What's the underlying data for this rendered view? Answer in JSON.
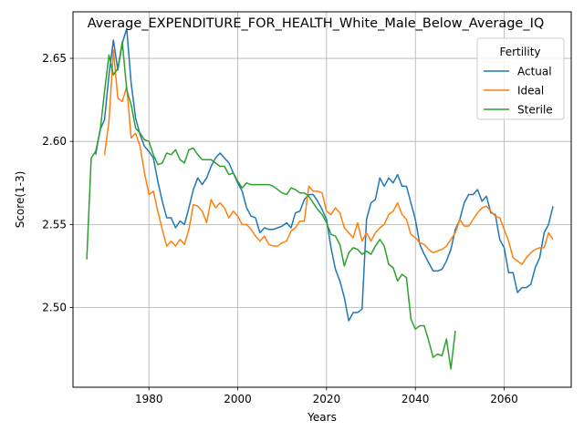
{
  "chart_data": {
    "type": "line",
    "title": "Average_EXPENDITURE_FOR_HEALTH_White_Male_Below_Average_IQ",
    "xlabel": "Years",
    "ylabel": "Score(1-3)",
    "xlim": [
      1962.9,
      2075.1
    ],
    "ylim": [
      2.452,
      2.678
    ],
    "xticks": [
      1980,
      2000,
      2020,
      2040,
      2060
    ],
    "yticks": [
      2.5,
      2.55,
      2.6,
      2.65
    ],
    "xtick_labels": [
      "1980",
      "2000",
      "2020",
      "2040",
      "2060"
    ],
    "ytick_labels": [
      "2.50",
      "2.55",
      "2.60",
      "2.65"
    ],
    "grid": true,
    "legend": {
      "title": "Fertility",
      "position": "top-right"
    },
    "series": [
      {
        "name": "Actual",
        "color": "#1f77b4",
        "points": [
          [
            1968,
            2.592
          ],
          [
            1969,
            2.607
          ],
          [
            1970,
            2.613
          ],
          [
            1971,
            2.64
          ],
          [
            1972,
            2.661
          ],
          [
            1973,
            2.643
          ],
          [
            1974,
            2.659
          ],
          [
            1975,
            2.668
          ],
          [
            1976,
            2.635
          ],
          [
            1977,
            2.614
          ],
          [
            1978,
            2.604
          ],
          [
            1979,
            2.597
          ],
          [
            1980,
            2.594
          ],
          [
            1981,
            2.59
          ],
          [
            1982,
            2.576
          ],
          [
            1983,
            2.564
          ],
          [
            1984,
            2.554
          ],
          [
            1985,
            2.554
          ],
          [
            1986,
            2.548
          ],
          [
            1987,
            2.552
          ],
          [
            1988,
            2.55
          ],
          [
            1989,
            2.56
          ],
          [
            1990,
            2.571
          ],
          [
            1991,
            2.578
          ],
          [
            1992,
            2.574
          ],
          [
            1993,
            2.578
          ],
          [
            1994,
            2.585
          ],
          [
            1995,
            2.59
          ],
          [
            1996,
            2.593
          ],
          [
            1997,
            2.59
          ],
          [
            1998,
            2.587
          ],
          [
            1999,
            2.581
          ],
          [
            2000,
            2.575
          ],
          [
            2001,
            2.57
          ],
          [
            2002,
            2.56
          ],
          [
            2003,
            2.555
          ],
          [
            2004,
            2.554
          ],
          [
            2005,
            2.545
          ],
          [
            2006,
            2.548
          ],
          [
            2007,
            2.547
          ],
          [
            2008,
            2.547
          ],
          [
            2009,
            2.548
          ],
          [
            2010,
            2.549
          ],
          [
            2011,
            2.551
          ],
          [
            2012,
            2.548
          ],
          [
            2013,
            2.557
          ],
          [
            2014,
            2.558
          ],
          [
            2015,
            2.565
          ],
          [
            2016,
            2.568
          ],
          [
            2017,
            2.568
          ],
          [
            2018,
            2.564
          ],
          [
            2019,
            2.559
          ],
          [
            2020,
            2.553
          ],
          [
            2021,
            2.536
          ],
          [
            2022,
            2.523
          ],
          [
            2023,
            2.516
          ],
          [
            2024,
            2.506
          ],
          [
            2025,
            2.492
          ],
          [
            2026,
            2.497
          ],
          [
            2027,
            2.497
          ],
          [
            2028,
            2.499
          ],
          [
            2029,
            2.553
          ],
          [
            2030,
            2.563
          ],
          [
            2031,
            2.565
          ],
          [
            2032,
            2.578
          ],
          [
            2033,
            2.573
          ],
          [
            2034,
            2.578
          ],
          [
            2035,
            2.575
          ],
          [
            2036,
            2.58
          ],
          [
            2037,
            2.573
          ],
          [
            2038,
            2.573
          ],
          [
            2039,
            2.563
          ],
          [
            2040,
            2.553
          ],
          [
            2041,
            2.538
          ],
          [
            2042,
            2.532
          ],
          [
            2043,
            2.527
          ],
          [
            2044,
            2.522
          ],
          [
            2045,
            2.522
          ],
          [
            2046,
            2.523
          ],
          [
            2047,
            2.528
          ],
          [
            2048,
            2.535
          ],
          [
            2049,
            2.547
          ],
          [
            2050,
            2.553
          ],
          [
            2051,
            2.563
          ],
          [
            2052,
            2.568
          ],
          [
            2053,
            2.568
          ],
          [
            2054,
            2.571
          ],
          [
            2055,
            2.564
          ],
          [
            2056,
            2.567
          ],
          [
            2057,
            2.557
          ],
          [
            2058,
            2.556
          ],
          [
            2059,
            2.541
          ],
          [
            2060,
            2.536
          ],
          [
            2061,
            2.521
          ],
          [
            2062,
            2.521
          ],
          [
            2063,
            2.509
          ],
          [
            2064,
            2.512
          ],
          [
            2065,
            2.512
          ],
          [
            2066,
            2.514
          ],
          [
            2067,
            2.524
          ],
          [
            2068,
            2.53
          ],
          [
            2069,
            2.545
          ],
          [
            2070,
            2.55
          ],
          [
            2071,
            2.561
          ]
        ]
      },
      {
        "name": "Ideal",
        "color": "#ff7f0e",
        "points": [
          [
            1970,
            2.592
          ],
          [
            1971,
            2.612
          ],
          [
            1972,
            2.655
          ],
          [
            1973,
            2.626
          ],
          [
            1974,
            2.624
          ],
          [
            1975,
            2.633
          ],
          [
            1976,
            2.602
          ],
          [
            1977,
            2.605
          ],
          [
            1978,
            2.597
          ],
          [
            1979,
            2.581
          ],
          [
            1980,
            2.568
          ],
          [
            1981,
            2.57
          ],
          [
            1982,
            2.558
          ],
          [
            1983,
            2.547
          ],
          [
            1984,
            2.537
          ],
          [
            1985,
            2.54
          ],
          [
            1986,
            2.537
          ],
          [
            1987,
            2.541
          ],
          [
            1988,
            2.538
          ],
          [
            1989,
            2.547
          ],
          [
            1990,
            2.562
          ],
          [
            1991,
            2.561
          ],
          [
            1992,
            2.558
          ],
          [
            1993,
            2.551
          ],
          [
            1994,
            2.565
          ],
          [
            1995,
            2.56
          ],
          [
            1996,
            2.563
          ],
          [
            1997,
            2.56
          ],
          [
            1998,
            2.554
          ],
          [
            1999,
            2.558
          ],
          [
            2000,
            2.555
          ],
          [
            2001,
            2.55
          ],
          [
            2002,
            2.55
          ],
          [
            2003,
            2.547
          ],
          [
            2004,
            2.543
          ],
          [
            2005,
            2.54
          ],
          [
            2006,
            2.543
          ],
          [
            2007,
            2.538
          ],
          [
            2008,
            2.537
          ],
          [
            2009,
            2.537
          ],
          [
            2010,
            2.539
          ],
          [
            2011,
            2.54
          ],
          [
            2012,
            2.546
          ],
          [
            2013,
            2.548
          ],
          [
            2014,
            2.552
          ],
          [
            2015,
            2.552
          ],
          [
            2016,
            2.573
          ],
          [
            2017,
            2.57
          ],
          [
            2018,
            2.57
          ],
          [
            2019,
            2.569
          ],
          [
            2020,
            2.558
          ],
          [
            2021,
            2.556
          ],
          [
            2022,
            2.56
          ],
          [
            2023,
            2.557
          ],
          [
            2024,
            2.548
          ],
          [
            2025,
            2.545
          ],
          [
            2026,
            2.542
          ],
          [
            2027,
            2.551
          ],
          [
            2028,
            2.54
          ],
          [
            2029,
            2.545
          ],
          [
            2030,
            2.54
          ],
          [
            2031,
            2.545
          ],
          [
            2032,
            2.548
          ],
          [
            2033,
            2.55
          ],
          [
            2034,
            2.556
          ],
          [
            2035,
            2.558
          ],
          [
            2036,
            2.563
          ],
          [
            2037,
            2.556
          ],
          [
            2038,
            2.553
          ],
          [
            2039,
            2.544
          ],
          [
            2040,
            2.542
          ],
          [
            2041,
            2.539
          ],
          [
            2042,
            2.538
          ],
          [
            2043,
            2.535
          ],
          [
            2044,
            2.533
          ],
          [
            2045,
            2.534
          ],
          [
            2046,
            2.535
          ],
          [
            2047,
            2.537
          ],
          [
            2048,
            2.541
          ],
          [
            2049,
            2.545
          ],
          [
            2050,
            2.553
          ],
          [
            2051,
            2.549
          ],
          [
            2052,
            2.549
          ],
          [
            2053,
            2.553
          ],
          [
            2054,
            2.557
          ],
          [
            2055,
            2.56
          ],
          [
            2056,
            2.561
          ],
          [
            2057,
            2.558
          ],
          [
            2058,
            2.555
          ],
          [
            2059,
            2.554
          ],
          [
            2060,
            2.547
          ],
          [
            2061,
            2.54
          ],
          [
            2062,
            2.53
          ],
          [
            2063,
            2.528
          ],
          [
            2064,
            2.526
          ],
          [
            2065,
            2.53
          ],
          [
            2066,
            2.533
          ],
          [
            2067,
            2.535
          ],
          [
            2068,
            2.536
          ],
          [
            2069,
            2.536
          ],
          [
            2070,
            2.545
          ],
          [
            2071,
            2.541
          ]
        ]
      },
      {
        "name": "Sterile",
        "color": "#2ca02c",
        "points": [
          [
            1966,
            2.529
          ],
          [
            1967,
            2.59
          ],
          [
            1968,
            2.594
          ],
          [
            1969,
            2.606
          ],
          [
            1970,
            2.63
          ],
          [
            1971,
            2.652
          ],
          [
            1972,
            2.64
          ],
          [
            1973,
            2.644
          ],
          [
            1974,
            2.66
          ],
          [
            1975,
            2.631
          ],
          [
            1976,
            2.622
          ],
          [
            1977,
            2.608
          ],
          [
            1978,
            2.605
          ],
          [
            1979,
            2.601
          ],
          [
            1980,
            2.6
          ],
          [
            1981,
            2.592
          ],
          [
            1982,
            2.586
          ],
          [
            1983,
            2.587
          ],
          [
            1984,
            2.593
          ],
          [
            1985,
            2.592
          ],
          [
            1986,
            2.595
          ],
          [
            1987,
            2.589
          ],
          [
            1988,
            2.587
          ],
          [
            1989,
            2.595
          ],
          [
            1990,
            2.596
          ],
          [
            1991,
            2.592
          ],
          [
            1992,
            2.589
          ],
          [
            1993,
            2.589
          ],
          [
            1994,
            2.589
          ],
          [
            1995,
            2.587
          ],
          [
            1996,
            2.585
          ],
          [
            1997,
            2.585
          ],
          [
            1998,
            2.58
          ],
          [
            1999,
            2.581
          ],
          [
            2000,
            2.576
          ],
          [
            2001,
            2.572
          ],
          [
            2002,
            2.575
          ],
          [
            2003,
            2.574
          ],
          [
            2004,
            2.574
          ],
          [
            2005,
            2.574
          ],
          [
            2006,
            2.574
          ],
          [
            2007,
            2.574
          ],
          [
            2008,
            2.573
          ],
          [
            2009,
            2.571
          ],
          [
            2010,
            2.569
          ],
          [
            2011,
            2.568
          ],
          [
            2012,
            2.572
          ],
          [
            2013,
            2.571
          ],
          [
            2014,
            2.569
          ],
          [
            2015,
            2.569
          ],
          [
            2016,
            2.567
          ],
          [
            2017,
            2.563
          ],
          [
            2018,
            2.559
          ],
          [
            2019,
            2.556
          ],
          [
            2020,
            2.551
          ],
          [
            2021,
            2.544
          ],
          [
            2022,
            2.543
          ],
          [
            2023,
            2.538
          ],
          [
            2024,
            2.525
          ],
          [
            2025,
            2.533
          ],
          [
            2026,
            2.536
          ],
          [
            2027,
            2.535
          ],
          [
            2028,
            2.532
          ],
          [
            2029,
            2.534
          ],
          [
            2030,
            2.532
          ],
          [
            2031,
            2.537
          ],
          [
            2032,
            2.541
          ],
          [
            2033,
            2.537
          ],
          [
            2034,
            2.526
          ],
          [
            2035,
            2.524
          ],
          [
            2036,
            2.516
          ],
          [
            2037,
            2.52
          ],
          [
            2038,
            2.518
          ],
          [
            2039,
            2.493
          ],
          [
            2040,
            2.487
          ],
          [
            2041,
            2.489
          ],
          [
            2042,
            2.489
          ],
          [
            2043,
            2.48
          ],
          [
            2044,
            2.47
          ],
          [
            2045,
            2.472
          ],
          [
            2046,
            2.471
          ],
          [
            2047,
            2.481
          ],
          [
            2048,
            2.463
          ],
          [
            2049,
            2.486
          ]
        ]
      }
    ]
  }
}
